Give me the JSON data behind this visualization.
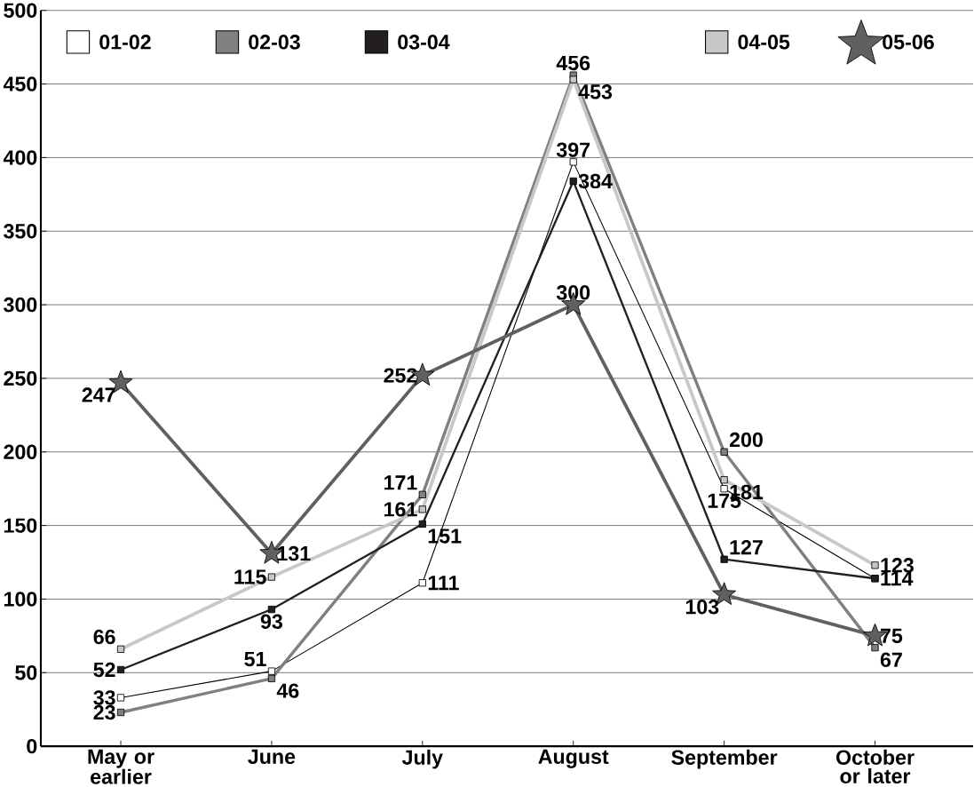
{
  "chart_data": {
    "type": "line",
    "categories": [
      "May or earlier",
      "June",
      "July",
      "August",
      "September",
      "October or later"
    ],
    "series": [
      {
        "name": "01-02",
        "color": "#ffffff",
        "marker": "square",
        "values": [
          33,
          51,
          111,
          397,
          175,
          114
        ],
        "value_labels": [
          "33",
          "51",
          "111",
          "397",
          "175",
          null
        ]
      },
      {
        "name": "02-03",
        "color": "#808080",
        "marker": "square",
        "values": [
          23,
          46,
          171,
          456,
          200,
          67
        ],
        "value_labels": [
          "23",
          "46",
          "171",
          "456",
          "200",
          "67"
        ]
      },
      {
        "name": "03-04",
        "color": "#231f20",
        "marker": "square",
        "values": [
          52,
          93,
          151,
          384,
          127,
          114
        ],
        "value_labels": [
          "52",
          "93",
          "151",
          "384",
          "127",
          "114"
        ]
      },
      {
        "name": "04-05",
        "color": "#c8c8c8",
        "marker": "square",
        "values": [
          66,
          115,
          161,
          453,
          181,
          123
        ],
        "value_labels": [
          "66",
          "115",
          "161",
          "453",
          "181",
          "123"
        ]
      },
      {
        "name": "05-06",
        "color": "#606060",
        "marker": "star",
        "values": [
          247,
          131,
          252,
          300,
          103,
          75
        ],
        "value_labels": [
          "247",
          "131",
          "252",
          "300",
          "103",
          "75"
        ]
      }
    ],
    "ylim": [
      0,
      500
    ],
    "yticks": [
      0,
      50,
      100,
      150,
      200,
      250,
      300,
      350,
      400,
      450,
      500
    ],
    "grid": "y",
    "legend": "top"
  }
}
